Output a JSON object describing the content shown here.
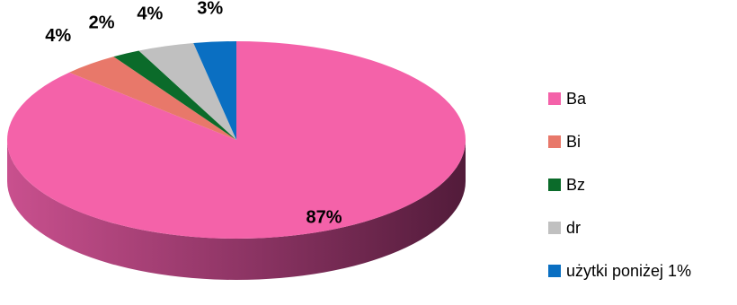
{
  "chart_data": {
    "type": "pie",
    "style": "3d",
    "title": "",
    "slices": [
      {
        "name": "Ba",
        "value": 87,
        "label": "87%",
        "color": "#F462A9"
      },
      {
        "name": "Bi",
        "value": 4,
        "label": "4%",
        "color": "#E8786A"
      },
      {
        "name": "Bz",
        "value": 2,
        "label": "2%",
        "color": "#0B6B2A"
      },
      {
        "name": "dr",
        "value": 4,
        "label": "4%",
        "color": "#C0C0C0"
      },
      {
        "name": "użytki poniżej 1%",
        "value": 3,
        "label": "3%",
        "color": "#0A6FC2"
      }
    ],
    "legend": {
      "position": "right",
      "entries": [
        "Ba",
        "Bi",
        "Bz",
        "dr",
        "użytki poniżej 1%"
      ]
    }
  }
}
